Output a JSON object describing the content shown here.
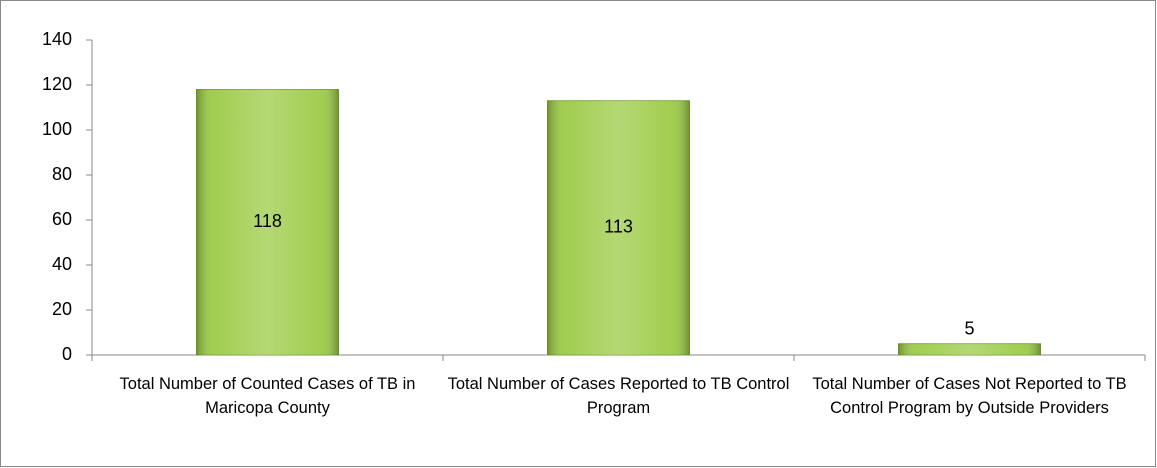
{
  "chart_data": {
    "type": "bar",
    "categories": [
      "Total Number of Counted Cases of TB in Maricopa County",
      "Total Number of Cases Reported to TB Control Program",
      "Total Number of Cases Not Reported to TB Control Program by Outside Providers"
    ],
    "values": [
      118,
      113,
      5
    ],
    "color": "#9ccb47",
    "ylim": [
      0,
      140
    ],
    "yticks": [
      0,
      20,
      40,
      60,
      80,
      100,
      120,
      140
    ],
    "grid": false
  }
}
